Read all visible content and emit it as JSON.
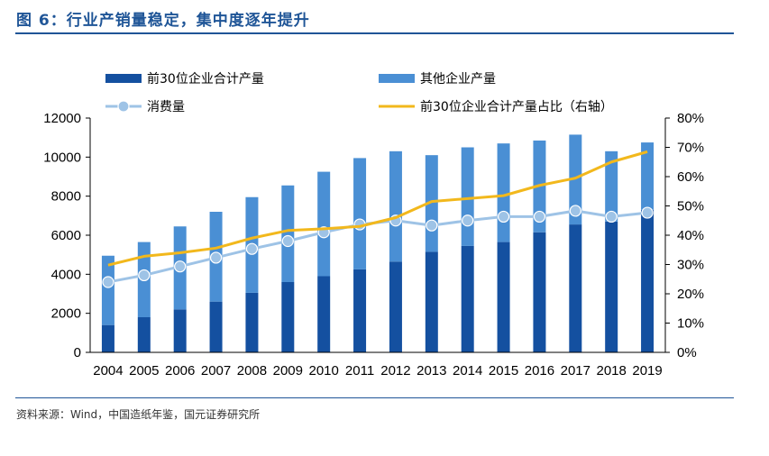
{
  "figure": {
    "title": "图 6：行业产销量稳定，集中度逐年提升",
    "source": "资料来源：Wind，中国造纸年鉴，国元证券研究所"
  },
  "colors": {
    "top30": "#1450a0",
    "others": "#4a8fd4",
    "consumption": "#9ec3e6",
    "share": "#f2b81c",
    "axis": "#000000",
    "title": "#1f5597"
  },
  "chart_data": {
    "type": "bar",
    "stacked": true,
    "categories": [
      "2004",
      "2005",
      "2006",
      "2007",
      "2008",
      "2009",
      "2010",
      "2011",
      "2012",
      "2013",
      "2014",
      "2015",
      "2016",
      "2017",
      "2018",
      "2019"
    ],
    "series": [
      {
        "name": "前30位企业合计产量",
        "kind": "bar",
        "axis": "left",
        "values": [
          1400,
          1800,
          2200,
          2600,
          3050,
          3600,
          3900,
          4250,
          4650,
          5150,
          5450,
          5650,
          6150,
          6550,
          6700,
          7300
        ]
      },
      {
        "name": "其他企业产量",
        "kind": "bar",
        "axis": "left",
        "values": [
          3550,
          3850,
          4250,
          4600,
          4900,
          4950,
          5350,
          5700,
          5650,
          4950,
          5050,
          5050,
          4700,
          4600,
          3600,
          3450
        ]
      },
      {
        "name": "消费量",
        "kind": "line-marker",
        "axis": "left",
        "values": [
          3600,
          3950,
          4400,
          4850,
          5300,
          5700,
          6150,
          6550,
          6750,
          6500,
          6750,
          6950,
          6950,
          7250,
          6950,
          7150
        ]
      },
      {
        "name": "前30位企业合计产量占比（右轴）",
        "kind": "line",
        "axis": "right",
        "values": [
          29.8,
          32.8,
          34.0,
          35.6,
          39.0,
          41.6,
          42.2,
          43.0,
          46.0,
          51.5,
          52.5,
          53.5,
          57.0,
          59.5,
          65.0,
          68.5
        ]
      }
    ],
    "y_left": {
      "min": 0,
      "max": 12000,
      "ticks": [
        0,
        2000,
        4000,
        6000,
        8000,
        10000,
        12000
      ]
    },
    "y_right": {
      "min": 0,
      "max": 80,
      "ticks": [
        "0%",
        "10%",
        "20%",
        "30%",
        "40%",
        "50%",
        "60%",
        "70%",
        "80%"
      ]
    },
    "legend_position": "top",
    "grid": false
  }
}
